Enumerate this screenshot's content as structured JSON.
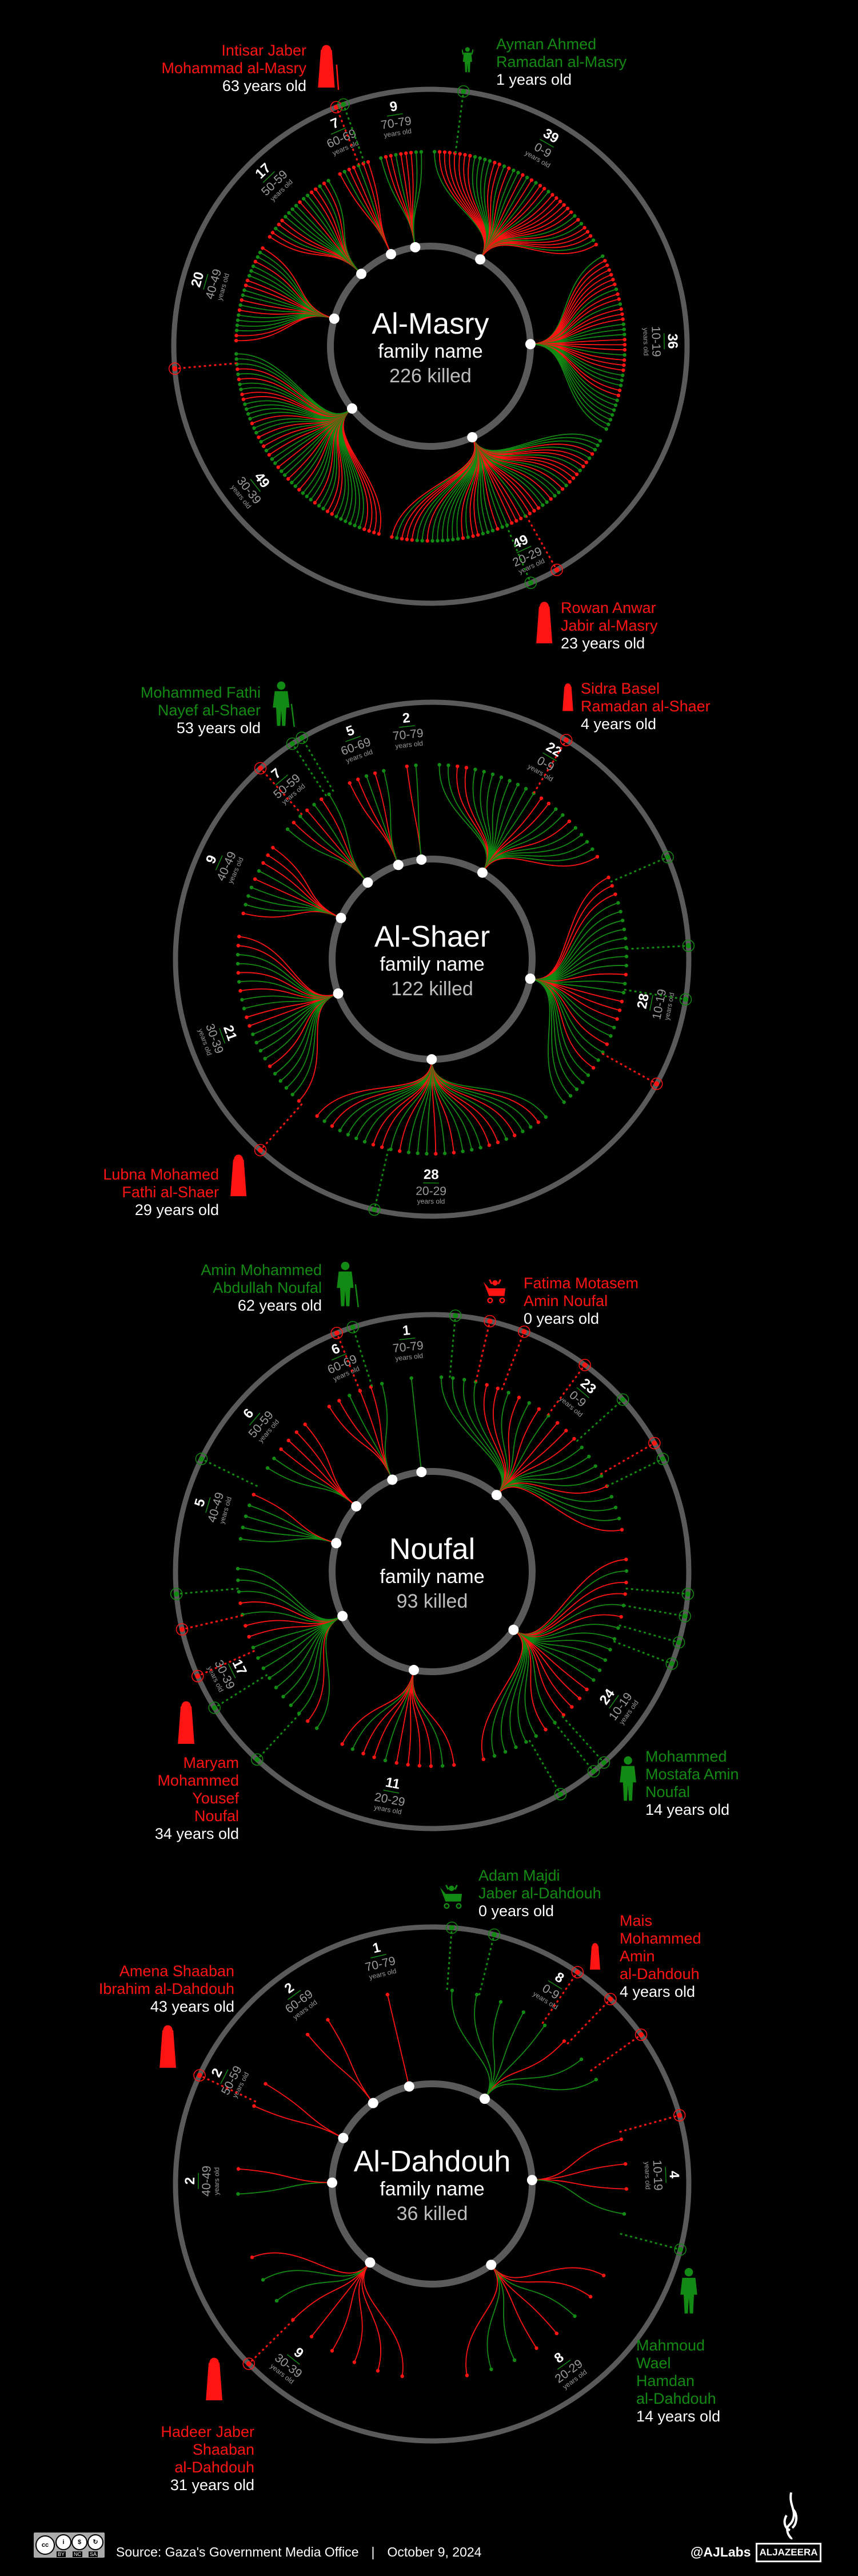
{
  "colors": {
    "female": "#ff1414",
    "male": "#138a13",
    "ring": "#5a5a5a",
    "background": "#000000",
    "killed_text": "#bdbdbd",
    "age_label": "#9a9a9a"
  },
  "chart_data": [
    {
      "type": "radial-tree",
      "family": "Al-Masry",
      "subtitle": "family name",
      "killed": "226 killed",
      "groups": [
        {
          "range": "0-9",
          "count": 39,
          "unit": "years old"
        },
        {
          "range": "10-19",
          "count": 36,
          "unit": "years old"
        },
        {
          "range": "20-29",
          "count": 49,
          "unit": "years old"
        },
        {
          "range": "30-39",
          "count": 49,
          "unit": "years old"
        },
        {
          "range": "40-49",
          "count": 20,
          "unit": "years old"
        },
        {
          "range": "50-59",
          "count": 17,
          "unit": "years old"
        },
        {
          "range": "60-69",
          "count": 7,
          "unit": "years old"
        },
        {
          "range": "70-79",
          "count": 9,
          "unit": "years old"
        }
      ],
      "people": [
        {
          "name": [
            "Intisar Jaber",
            "Mohammad al-Masry"
          ],
          "age": "63 years old",
          "gender": "female",
          "icon": "elderly-woman-icon"
        },
        {
          "name": [
            "Ayman Ahmed",
            "Ramadan al-Masry"
          ],
          "age": "1 years old",
          "gender": "male",
          "icon": "child-icon"
        },
        {
          "name": [
            "Rowan Anwar",
            "Jabir al-Masry"
          ],
          "age": "23 years old",
          "gender": "female",
          "icon": "woman-icon"
        }
      ]
    },
    {
      "type": "radial-tree",
      "family": "Al-Shaer",
      "subtitle": "family name",
      "killed": "122 killed",
      "groups": [
        {
          "range": "0-9",
          "count": 22,
          "unit": "years old"
        },
        {
          "range": "10-19",
          "count": 28,
          "unit": "years old"
        },
        {
          "range": "20-29",
          "count": 28,
          "unit": "years old"
        },
        {
          "range": "30-39",
          "count": 21,
          "unit": "years old"
        },
        {
          "range": "40-49",
          "count": 9,
          "unit": "years old"
        },
        {
          "range": "50-59",
          "count": 7,
          "unit": "years old"
        },
        {
          "range": "60-69",
          "count": 5,
          "unit": "years old"
        },
        {
          "range": "70-79",
          "count": 2,
          "unit": "years old"
        }
      ],
      "people": [
        {
          "name": [
            "Mohammed Fathi",
            "Nayef al-Shaer"
          ],
          "age": "53 years old",
          "gender": "male",
          "icon": "elderly-man-icon"
        },
        {
          "name": [
            "Sidra Basel",
            "Ramadan al-Shaer"
          ],
          "age": "4 years old",
          "gender": "female",
          "icon": "girl-icon"
        },
        {
          "name": [
            "Lubna Mohamed",
            "Fathi al-Shaer"
          ],
          "age": "29 years old",
          "gender": "female",
          "icon": "woman-icon"
        }
      ]
    },
    {
      "type": "radial-tree",
      "family": "Noufal",
      "subtitle": "family name",
      "killed": "93 killed",
      "groups": [
        {
          "range": "0-9",
          "count": 23,
          "unit": "years old"
        },
        {
          "range": "10-19",
          "count": 24,
          "unit": "years old"
        },
        {
          "range": "20-29",
          "count": 11,
          "unit": "years old"
        },
        {
          "range": "30-39",
          "count": 17,
          "unit": "years old"
        },
        {
          "range": "40-49",
          "count": 5,
          "unit": "years old"
        },
        {
          "range": "50-59",
          "count": 6,
          "unit": "years old"
        },
        {
          "range": "60-69",
          "count": 6,
          "unit": "years old"
        },
        {
          "range": "70-79",
          "count": 1,
          "unit": "years old"
        }
      ],
      "people": [
        {
          "name": [
            "Amin Mohammed",
            "Abdullah Noufal"
          ],
          "age": "62 years old",
          "gender": "male",
          "icon": "elderly-man-icon"
        },
        {
          "name": [
            "Fatima Motasem",
            "Amin Noufal"
          ],
          "age": "0 years old",
          "gender": "female",
          "icon": "baby-stroller-icon"
        },
        {
          "name": [
            "Maryam",
            "Mohammed",
            "Yousef",
            "Noufal"
          ],
          "age": "34 years old",
          "gender": "female",
          "icon": "woman-icon"
        },
        {
          "name": [
            "Mohammed",
            "Mostafa Amin",
            "Noufal"
          ],
          "age": "14 years old",
          "gender": "male",
          "icon": "man-icon"
        }
      ]
    },
    {
      "type": "radial-tree",
      "family": "Al-Dahdouh",
      "subtitle": "family name",
      "killed": "36 killed",
      "groups": [
        {
          "range": "0-9",
          "count": 8,
          "unit": "years old"
        },
        {
          "range": "10-19",
          "count": 4,
          "unit": "years old"
        },
        {
          "range": "20-29",
          "count": 8,
          "unit": "years old"
        },
        {
          "range": "30-39",
          "count": 9,
          "unit": "years old"
        },
        {
          "range": "40-49",
          "count": 2,
          "unit": "years old"
        },
        {
          "range": "50-59",
          "count": 2,
          "unit": "years old"
        },
        {
          "range": "60-69",
          "count": 2,
          "unit": "years old"
        },
        {
          "range": "70-79",
          "count": 1,
          "unit": "years old"
        }
      ],
      "people": [
        {
          "name": [
            "Adam Majdi",
            "Jaber al-Dahdouh"
          ],
          "age": "0 years old",
          "gender": "male",
          "icon": "baby-stroller-icon"
        },
        {
          "name": [
            "Mais",
            "Mohammed",
            "Amin",
            "al-Dahdouh"
          ],
          "age": "4 years old",
          "gender": "female",
          "icon": "girl-icon"
        },
        {
          "name": [
            "Amena Shaaban",
            "Ibrahim al-Dahdouh"
          ],
          "age": "43 years old",
          "gender": "female",
          "icon": "woman-icon"
        },
        {
          "name": [
            "Mahmoud",
            "Wael",
            "Hamdan",
            "al-Dahdouh"
          ],
          "age": "14 years old",
          "gender": "male",
          "icon": "man-icon"
        },
        {
          "name": [
            "Hadeer Jaber",
            "Shaaban",
            "al-Dahdouh"
          ],
          "age": "31 years old",
          "gender": "female",
          "icon": "woman-icon"
        }
      ]
    }
  ],
  "footer": {
    "license_badge": "CC BY NC SA",
    "license_parts": [
      "BY",
      "NC",
      "SA"
    ],
    "source_label": "Source:",
    "source": "Gaza's Government Media Office",
    "separator": "|",
    "date": "October 9, 2024",
    "handle": "@AJLabs",
    "logo": "ALJAZEERA"
  }
}
